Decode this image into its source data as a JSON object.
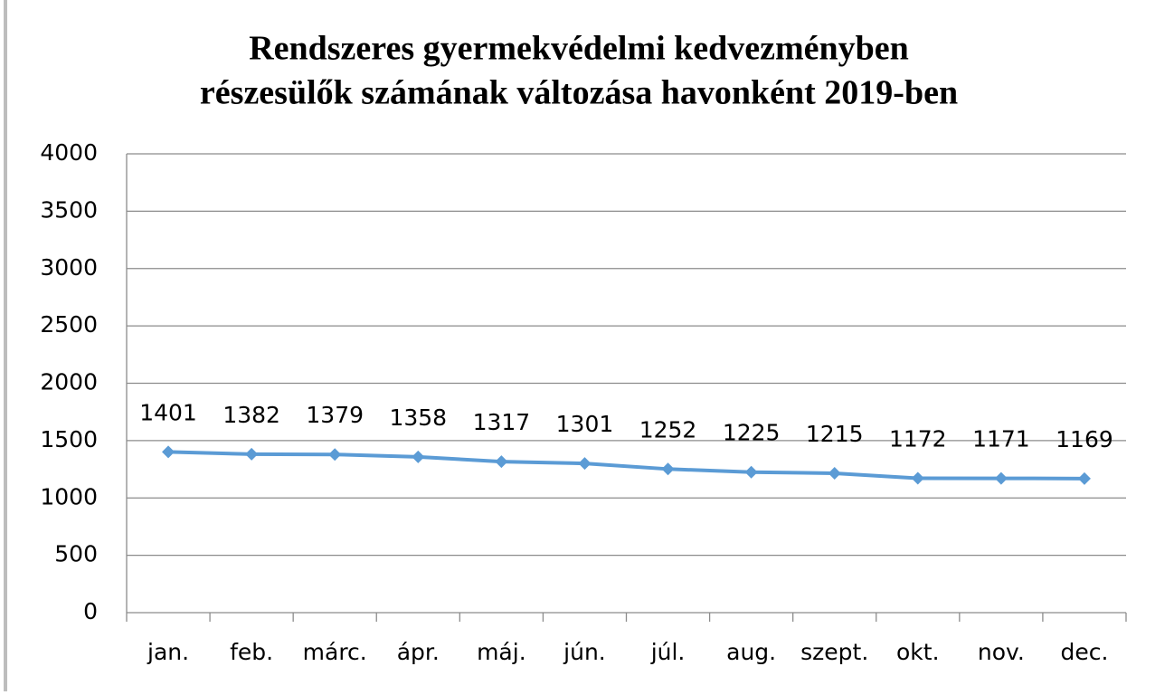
{
  "chart_data": {
    "type": "line",
    "title": [
      "Rendszeres gyermekvédelmi kedvezményben",
      "részesülők számának változása havonként 2019-ben"
    ],
    "categories": [
      "jan.",
      "feb.",
      "márc.",
      "ápr.",
      "máj.",
      "jún.",
      "júl.",
      "aug.",
      "szept.",
      "okt.",
      "nov.",
      "dec."
    ],
    "series": [
      {
        "name": "Rendszeres gyermekvédelmi kedvezményben részesülők",
        "color": "#5b9bd5",
        "values": [
          1401,
          1382,
          1379,
          1358,
          1317,
          1301,
          1252,
          1225,
          1215,
          1172,
          1171,
          1169
        ]
      }
    ],
    "ylim": [
      0,
      4000
    ],
    "yticks": [
      0,
      500,
      1000,
      1500,
      2000,
      2500,
      3000,
      3500,
      4000
    ],
    "grid": true,
    "legend": false
  }
}
